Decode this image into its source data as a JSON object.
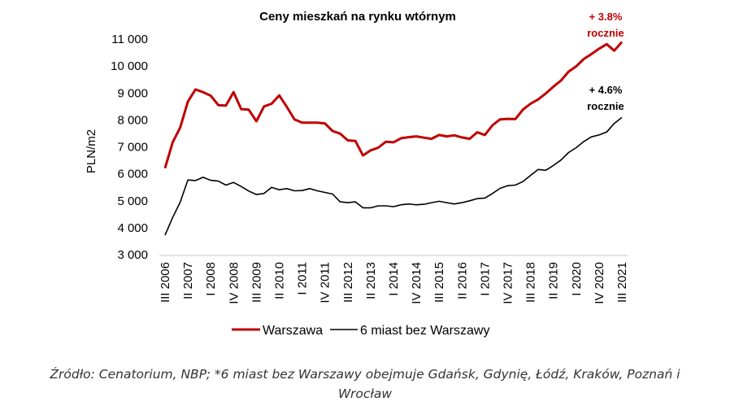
{
  "chart_data": {
    "type": "line",
    "title": "Ceny mieszkań na rynku wtórnym",
    "ylabel": "PLN/m2",
    "xlabel": "",
    "ylim": [
      3000,
      11000
    ],
    "yticks": [
      3000,
      4000,
      5000,
      6000,
      7000,
      8000,
      9000,
      10000,
      11000
    ],
    "ytick_labels": [
      "3 000",
      "4 000",
      "5 000",
      "6 000",
      "7 000",
      "8 000",
      "9 000",
      "10 000",
      "11 000"
    ],
    "grid": false,
    "legend_position": "bottom",
    "categories": [
      "III 2006",
      "IV 2006",
      "I 2007",
      "II 2007",
      "III 2007",
      "IV 2007",
      "I 2008",
      "II 2008",
      "III 2008",
      "IV 2008",
      "I 2009",
      "II 2009",
      "III 2009",
      "IV 2009",
      "I 2010",
      "II 2010",
      "III 2010",
      "IV 2010",
      "I 2011",
      "II 2011",
      "III 2011",
      "IV 2011",
      "I 2012",
      "II 2012",
      "III 2012",
      "IV 2012",
      "I 2013",
      "II 2013",
      "III 2013",
      "IV 2013",
      "I 2014",
      "II 2014",
      "III 2014",
      "IV 2014",
      "I 2015",
      "II 2015",
      "III 2015",
      "IV 2015",
      "I 2016",
      "II 2016",
      "III 2016",
      "IV 2016",
      "I 2017",
      "II 2017",
      "III 2017",
      "IV 2017",
      "I 2018",
      "II 2018",
      "III 2018",
      "IV 2018",
      "I 2019",
      "II 2019",
      "III 2019",
      "IV 2019",
      "I 2020",
      "II 2020",
      "III 2020",
      "IV 2020",
      "I 2021",
      "II 2021",
      "III 2021"
    ],
    "tick_labels": [
      "III 2006",
      "II 2007",
      "I 2008",
      "IV 2008",
      "III 2009",
      "II 2010",
      "I 2011",
      "IV 2011",
      "III 2012",
      "II 2013",
      "I 2014",
      "IV 2014",
      "III 2015",
      "II 2016",
      "I 2017",
      "IV 2017",
      "III 2018",
      "II 2019",
      "I 2020",
      "IV 2020",
      "III 2021"
    ],
    "series": [
      {
        "name": "Warszawa",
        "color": "#c00000",
        "values": [
          6210,
          7170,
          7720,
          8680,
          9130,
          9030,
          8900,
          8550,
          8530,
          9030,
          8400,
          8380,
          7950,
          8500,
          8600,
          8910,
          8480,
          8020,
          7900,
          7900,
          7900,
          7870,
          7590,
          7490,
          7240,
          7220,
          6680,
          6870,
          6970,
          7190,
          7170,
          7320,
          7360,
          7390,
          7340,
          7300,
          7440,
          7390,
          7430,
          7350,
          7300,
          7540,
          7440,
          7800,
          8020,
          8040,
          8030,
          8380,
          8600,
          8760,
          8980,
          9230,
          9460,
          9790,
          9990,
          10260,
          10440,
          10640,
          10810,
          10570,
          10890
        ]
      },
      {
        "name": "6 miast bez Warszawy",
        "color": "#000000",
        "values": [
          3720,
          4380,
          4950,
          5770,
          5750,
          5870,
          5760,
          5730,
          5580,
          5680,
          5530,
          5360,
          5230,
          5270,
          5500,
          5410,
          5450,
          5370,
          5380,
          5450,
          5370,
          5310,
          5250,
          4960,
          4930,
          4960,
          4740,
          4740,
          4810,
          4810,
          4780,
          4850,
          4880,
          4850,
          4870,
          4930,
          4980,
          4930,
          4880,
          4930,
          5000,
          5080,
          5100,
          5270,
          5460,
          5560,
          5580,
          5710,
          5940,
          6160,
          6130,
          6310,
          6510,
          6790,
          6970,
          7200,
          7370,
          7440,
          7550,
          7870,
          8090
        ]
      }
    ],
    "annotations": [
      {
        "line1": "+ 3.8%",
        "line2": "rocznie",
        "color": "#c00000"
      },
      {
        "line1": "+ 4.6%",
        "line2": "rocznie",
        "color": "#000000"
      }
    ]
  },
  "source": {
    "line1": "Źródło: Cenatorium, NBP; *6 miast bez Warszawy obejmuje Gdańsk, Gdynię, Łódź, Kraków, Poznań i",
    "line2": "Wrocław"
  }
}
